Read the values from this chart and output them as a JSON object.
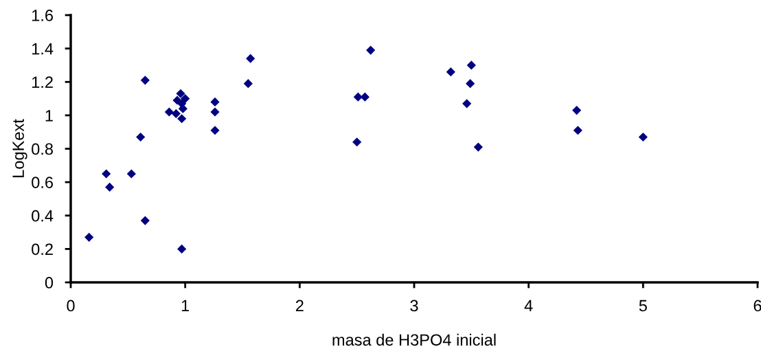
{
  "chart_data": {
    "type": "scatter",
    "xlabel": "masa de H3PO4 inicial",
    "ylabel": "LogKext",
    "x": [
      0.16,
      0.31,
      0.34,
      0.53,
      0.61,
      0.65,
      0.65,
      0.86,
      0.93,
      0.96,
      1.0,
      0.92,
      0.97,
      0.97,
      0.98,
      0.97,
      1.26,
      1.26,
      1.26,
      1.55,
      1.57,
      2.62,
      2.51,
      2.57,
      2.5,
      3.32,
      3.5,
      3.49,
      3.46,
      3.56,
      4.42,
      4.43,
      5.0
    ],
    "values": [
      0.27,
      0.65,
      0.57,
      0.65,
      0.87,
      1.21,
      0.37,
      1.02,
      1.09,
      1.13,
      1.1,
      1.01,
      0.98,
      0.2,
      1.04,
      1.07,
      1.08,
      1.02,
      0.91,
      1.19,
      1.34,
      1.39,
      1.11,
      1.11,
      0.84,
      1.26,
      1.3,
      1.19,
      1.07,
      0.81,
      1.03,
      0.91,
      0.87
    ],
    "color": "#000080",
    "marker": "diamond",
    "xlim": [
      0,
      6
    ],
    "ylim": [
      0,
      1.6
    ],
    "xticks": [
      0,
      1,
      2,
      3,
      4,
      5,
      6
    ],
    "yticks": [
      0,
      0.2,
      0.4,
      0.6,
      0.8,
      1,
      1.2,
      1.4,
      1.6
    ],
    "grid": false,
    "legend": false
  }
}
